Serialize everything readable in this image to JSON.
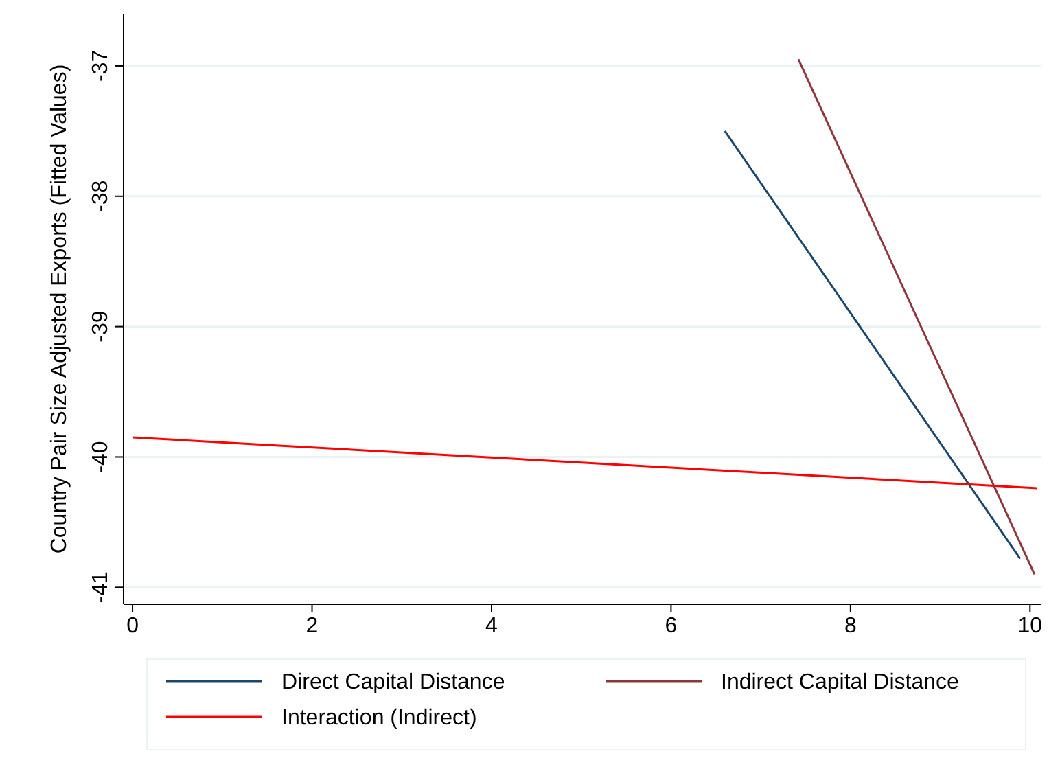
{
  "chart_data": {
    "type": "line",
    "ylabel": "Country Pair Size Adjusted Exports (Fitted Values)",
    "xlim": [
      -0.1,
      10.12
    ],
    "xticks": [
      0,
      2,
      4,
      6,
      8,
      10
    ],
    "ylim": [
      -41.13,
      -36.6
    ],
    "yticks": [
      -41,
      -40,
      -39,
      -38,
      -37
    ],
    "grid": "y",
    "legend": "bottom",
    "marker": "none",
    "line_style": "solid",
    "series": [
      {
        "name": "Direct Capital Distance",
        "color": "#1a476f",
        "x": [
          6.6,
          9.89
        ],
        "values": [
          -37.5,
          -40.78
        ]
      },
      {
        "name": "Indirect Capital Distance",
        "color": "#90353b",
        "x": [
          7.42,
          10.05
        ],
        "values": [
          -36.95,
          -40.9
        ]
      },
      {
        "name": "Interaction (Indirect)",
        "color": "#ff0000",
        "x": [
          0,
          10.08
        ],
        "values": [
          -39.85,
          -40.24
        ]
      }
    ]
  }
}
